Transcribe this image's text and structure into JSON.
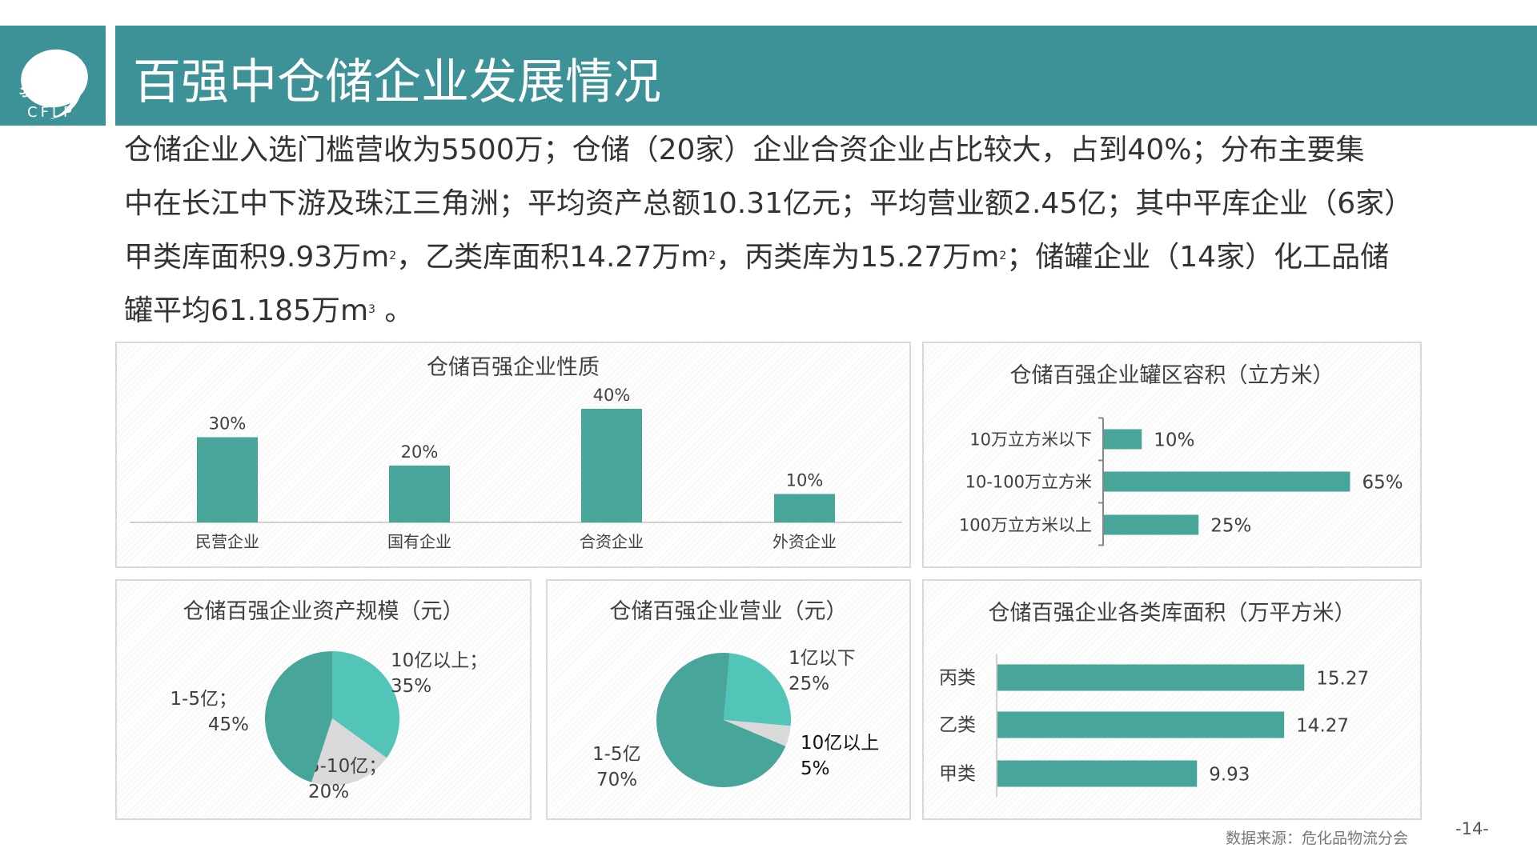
{
  "header": {
    "logo_text": "CFLP",
    "title": "百强中仓储企业发展情况"
  },
  "intro": {
    "line1": "仓储企业入选门槛营收为5500万；仓储（20家）企业合资企业占比较大，占到40%；分布主要集",
    "line2": "中在长江中下游及珠江三角洲；平均资产总额10.31亿元；平均营业额2.45亿；其中平库企业（6家）",
    "line3_a": "甲类库面积9.93万m",
    "line3_b": "，乙类库面积14.27万m",
    "line3_c": "，丙类库为15.27万m",
    "line3_d": "；储罐企业（14家）化工品储",
    "line4_a": "罐平均61.185万m",
    "line4_b": " 。",
    "sup2": "2",
    "sup3": "3"
  },
  "colors": {
    "brand": "#3d9298",
    "bar": "#47a599",
    "pie_light": "#52c4b8",
    "pie_gray": "#d9d9d9",
    "pie_dark": "#47a599"
  },
  "chart_data": [
    {
      "type": "bar",
      "title": "仓储百强企业性质",
      "categories": [
        "民营企业",
        "国有企业",
        "合资企业",
        "外资企业"
      ],
      "values": [
        30,
        20,
        40,
        10
      ],
      "labels": [
        "30%",
        "20%",
        "40%",
        "10%"
      ],
      "unit": "%",
      "grid": false
    },
    {
      "type": "bar",
      "orientation": "horizontal",
      "title": "仓储百强企业罐区容积（立方米）",
      "categories": [
        "10万立方米以下",
        "10-100万立方米",
        "100万立方米以上"
      ],
      "values": [
        10,
        65,
        25
      ],
      "labels": [
        "10%",
        "65%",
        "25%"
      ],
      "unit": "%"
    },
    {
      "type": "pie",
      "title": "仓储百强企业资产规模（元）",
      "slices": [
        {
          "name": "10亿以上；",
          "value": 35,
          "label": "35%",
          "color": "#52c4b8"
        },
        {
          "name": "5-10亿；",
          "value": 20,
          "label": "20%",
          "color": "#d9d9d9"
        },
        {
          "name": "1-5亿；",
          "value": 45,
          "label": "45%",
          "color": "#47a599"
        }
      ]
    },
    {
      "type": "pie",
      "title": "仓储百强企业营业（元）",
      "slices": [
        {
          "name": "1亿以下",
          "value": 25,
          "label": "25%",
          "color": "#52c4b8"
        },
        {
          "name": "10亿以上",
          "value": 5,
          "label": "5%",
          "color": "#d9d9d9"
        },
        {
          "name": "1-5亿",
          "value": 70,
          "label": "70%",
          "color": "#47a599"
        }
      ]
    },
    {
      "type": "bar",
      "orientation": "horizontal",
      "title": "仓储百强企业各类库面积（万平方米）",
      "categories": [
        "丙类",
        "乙类",
        "甲类"
      ],
      "values": [
        15.27,
        14.27,
        9.93
      ],
      "labels": [
        "15.27",
        "14.27",
        "9.93"
      ]
    }
  ],
  "footer": {
    "source": "数据来源：危化品物流分会",
    "page": "-14-"
  }
}
